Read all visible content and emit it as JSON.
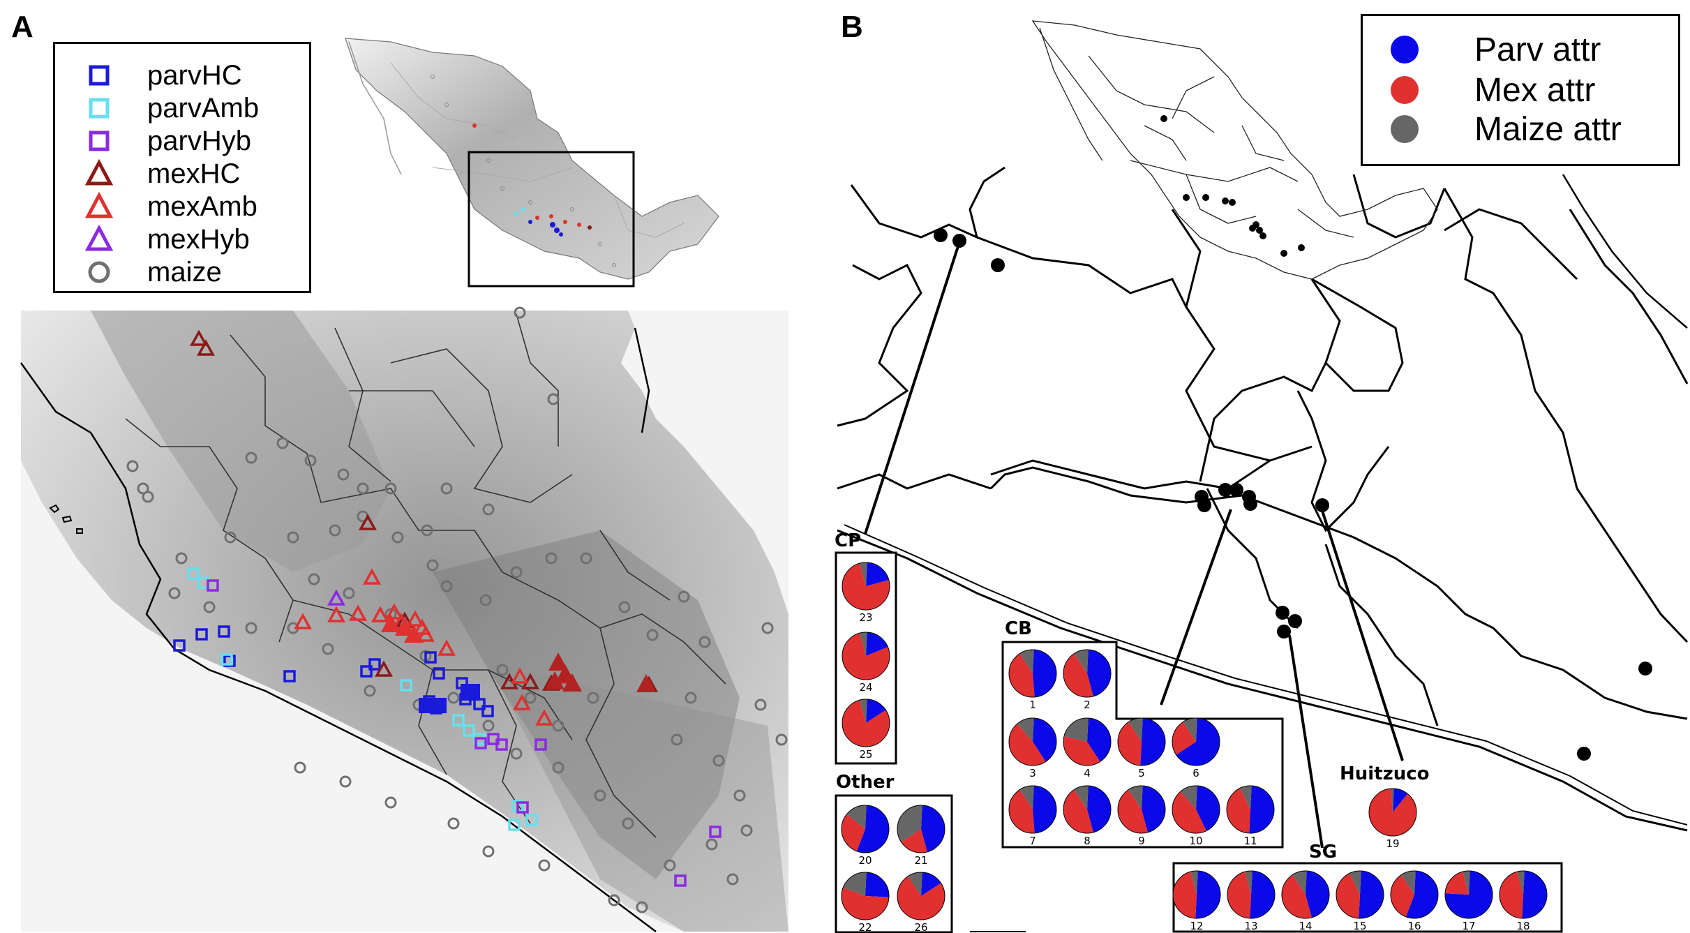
{
  "panels": {
    "a_letter": "A",
    "b_letter": "B"
  },
  "legend_a": {
    "items": [
      {
        "label": "parvHC",
        "shape": "square",
        "color": "#1a1adb"
      },
      {
        "label": "parvAmb",
        "shape": "square",
        "color": "#66e0ee"
      },
      {
        "label": "parvHyb",
        "shape": "square",
        "color": "#8a2be2"
      },
      {
        "label": "mexHC",
        "shape": "triangle",
        "color": "#8b1a1a"
      },
      {
        "label": "mexAmb",
        "shape": "triangle",
        "color": "#e03030"
      },
      {
        "label": "mexHyb",
        "shape": "triangle",
        "color": "#8a2be2"
      },
      {
        "label": "maize",
        "shape": "circle",
        "color": "#707070"
      }
    ]
  },
  "legend_b": {
    "items": [
      {
        "label": "Parv attr",
        "color": "#0a0ae8"
      },
      {
        "label": "Mex attr",
        "color": "#e03030"
      },
      {
        "label": "Maize attr",
        "color": "#666666"
      }
    ]
  },
  "groups": {
    "cp": "CP",
    "other": "Other",
    "cb": "CB",
    "huitzuco": "Huitzuco",
    "sg": "SG"
  },
  "pies": [
    {
      "num": "23",
      "group": "cp",
      "parv": 0.2,
      "mex": 0.75,
      "maize": 0.05
    },
    {
      "num": "24",
      "group": "cp",
      "parv": 0.18,
      "mex": 0.77,
      "maize": 0.05
    },
    {
      "num": "25",
      "group": "cp",
      "parv": 0.15,
      "mex": 0.8,
      "maize": 0.05
    },
    {
      "num": "20",
      "group": "other",
      "parv": 0.55,
      "mex": 0.3,
      "maize": 0.15
    },
    {
      "num": "21",
      "group": "other",
      "parv": 0.45,
      "mex": 0.2,
      "maize": 0.35
    },
    {
      "num": "22",
      "group": "other",
      "parv": 0.25,
      "mex": 0.55,
      "maize": 0.2
    },
    {
      "num": "26",
      "group": "other",
      "parv": 0.15,
      "mex": 0.75,
      "maize": 0.1
    },
    {
      "num": "1",
      "group": "cb",
      "parv": 0.48,
      "mex": 0.42,
      "maize": 0.1
    },
    {
      "num": "2",
      "group": "cb",
      "parv": 0.45,
      "mex": 0.45,
      "maize": 0.1
    },
    {
      "num": "3",
      "group": "cb",
      "parv": 0.4,
      "mex": 0.48,
      "maize": 0.12
    },
    {
      "num": "4",
      "group": "cb",
      "parv": 0.4,
      "mex": 0.38,
      "maize": 0.22
    },
    {
      "num": "5",
      "group": "cb",
      "parv": 0.5,
      "mex": 0.4,
      "maize": 0.1
    },
    {
      "num": "6",
      "group": "cb",
      "parv": 0.65,
      "mex": 0.25,
      "maize": 0.1
    },
    {
      "num": "7",
      "group": "cb",
      "parv": 0.48,
      "mex": 0.42,
      "maize": 0.1
    },
    {
      "num": "8",
      "group": "cb",
      "parv": 0.45,
      "mex": 0.45,
      "maize": 0.1
    },
    {
      "num": "9",
      "group": "cb",
      "parv": 0.45,
      "mex": 0.45,
      "maize": 0.1
    },
    {
      "num": "10",
      "group": "cb",
      "parv": 0.42,
      "mex": 0.46,
      "maize": 0.12
    },
    {
      "num": "11",
      "group": "cb",
      "parv": 0.5,
      "mex": 0.42,
      "maize": 0.08
    },
    {
      "num": "19",
      "group": "huitzuco",
      "parv": 0.1,
      "mex": 0.88,
      "maize": 0.02
    },
    {
      "num": "12",
      "group": "sg",
      "parv": 0.5,
      "mex": 0.45,
      "maize": 0.05
    },
    {
      "num": "13",
      "group": "sg",
      "parv": 0.5,
      "mex": 0.45,
      "maize": 0.05
    },
    {
      "num": "14",
      "group": "sg",
      "parv": 0.45,
      "mex": 0.45,
      "maize": 0.1
    },
    {
      "num": "15",
      "group": "sg",
      "parv": 0.5,
      "mex": 0.42,
      "maize": 0.08
    },
    {
      "num": "16",
      "group": "sg",
      "parv": 0.55,
      "mex": 0.35,
      "maize": 0.1
    },
    {
      "num": "17",
      "group": "sg",
      "parv": 0.75,
      "mex": 0.2,
      "maize": 0.05
    },
    {
      "num": "18",
      "group": "sg",
      "parv": 0.5,
      "mex": 0.45,
      "maize": 0.05
    }
  ]
}
